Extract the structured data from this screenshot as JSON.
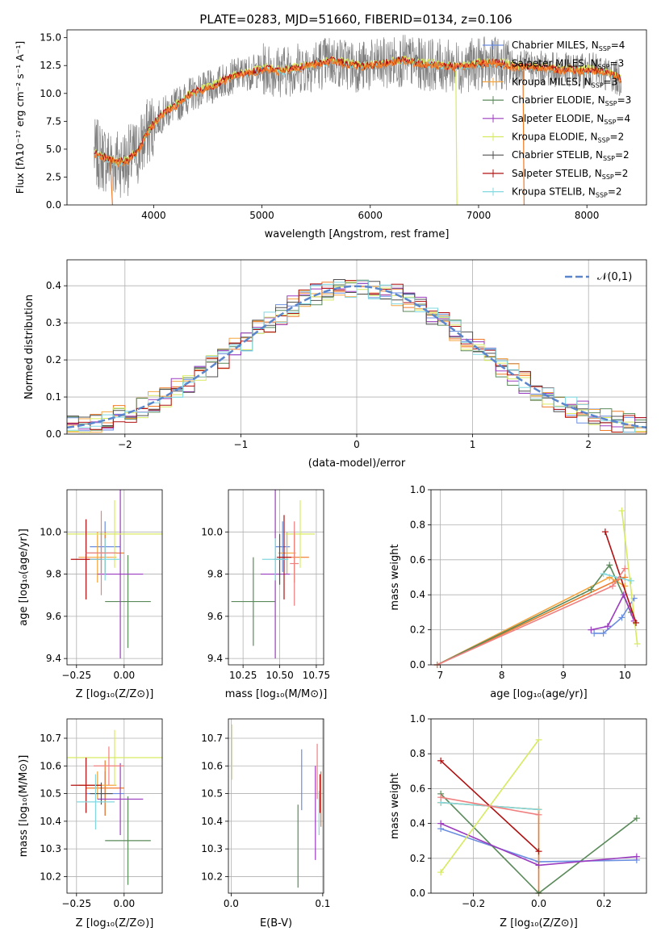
{
  "colors": {
    "cm": "#6a8ee0",
    "sm": "#f07a28",
    "km": "#f5a540",
    "ce": "#5a8a5a",
    "se": "#9b3bbf",
    "ke": "#d8ea60",
    "cs": "#505050",
    "ss": "#b01010",
    "ks": "#80d8e0",
    "grey": "#808080",
    "normal": "#5b86cc",
    "pinkish": "#f08080"
  },
  "chart_data": [
    {
      "id": "spectrum",
      "type": "line",
      "title": "PLATE=0283, MJD=51660, FIBERID=0134, z=0.106",
      "xlabel": "wavelength [Angstrom, rest frame]",
      "ylabel": "Flux [fλ10⁻¹⁷ erg cm⁻² s⁻¹ A⁻¹]",
      "xlim": [
        3200,
        8550
      ],
      "ylim": [
        0,
        15.7
      ],
      "xticks": [
        4000,
        5000,
        6000,
        7000,
        8000
      ],
      "yticks": [
        0.0,
        2.5,
        5.0,
        7.5,
        10.0,
        12.5,
        15.0
      ],
      "continuum": [
        [
          3450,
          4.6
        ],
        [
          3550,
          4.2
        ],
        [
          3650,
          3.8
        ],
        [
          3750,
          3.9
        ],
        [
          3850,
          4.7
        ],
        [
          3950,
          6.6
        ],
        [
          4050,
          7.8
        ],
        [
          4150,
          8.6
        ],
        [
          4250,
          9.2
        ],
        [
          4350,
          10.0
        ],
        [
          4450,
          10.3
        ],
        [
          4550,
          10.6
        ],
        [
          4650,
          11.2
        ],
        [
          4750,
          11.6
        ],
        [
          4850,
          11.8
        ],
        [
          4950,
          12.0
        ],
        [
          5050,
          12.2
        ],
        [
          5150,
          12.0
        ],
        [
          5250,
          12.1
        ],
        [
          5350,
          12.3
        ],
        [
          5450,
          12.5
        ],
        [
          5550,
          12.7
        ],
        [
          5650,
          12.9
        ],
        [
          5750,
          12.7
        ],
        [
          5850,
          12.5
        ],
        [
          5950,
          12.4
        ],
        [
          6050,
          12.5
        ],
        [
          6150,
          12.7
        ],
        [
          6250,
          12.9
        ],
        [
          6350,
          12.9
        ],
        [
          6450,
          12.6
        ],
        [
          6550,
          12.6
        ],
        [
          6650,
          12.5
        ],
        [
          6750,
          12.4
        ],
        [
          6850,
          12.4
        ],
        [
          6950,
          12.6
        ],
        [
          7050,
          12.7
        ],
        [
          7150,
          12.7
        ],
        [
          7250,
          12.6
        ],
        [
          7350,
          12.3
        ],
        [
          7450,
          12.4
        ],
        [
          7550,
          12.3
        ],
        [
          7650,
          12.2
        ],
        [
          7750,
          12.1
        ],
        [
          7850,
          12.1
        ],
        [
          7950,
          12.0
        ],
        [
          8050,
          12.1
        ],
        [
          8150,
          11.9
        ],
        [
          8250,
          11.6
        ],
        [
          8320,
          11.2
        ]
      ],
      "legend": [
        {
          "text": "Chabrier MILES, N",
          "sub": "SSP",
          "n": "=4",
          "color_key": "cm"
        },
        {
          "text": "Salpeter MILES, N",
          "sub": "SSP",
          "n": "=3",
          "color_key": "sm"
        },
        {
          "text": "Kroupa MILES, N",
          "sub": "SSP",
          "n": "=3",
          "color_key": "km"
        },
        {
          "text": "Chabrier ELODIE, N",
          "sub": "SSP",
          "n": "=3",
          "color_key": "ce"
        },
        {
          "text": "Salpeter ELODIE, N",
          "sub": "SSP",
          "n": "=4",
          "color_key": "se"
        },
        {
          "text": "Kroupa ELODIE, N",
          "sub": "SSP",
          "n": "=2",
          "color_key": "ke"
        },
        {
          "text": "Chabrier STELIB, N",
          "sub": "SSP",
          "n": "=2",
          "color_key": "cs"
        },
        {
          "text": "Salpeter STELIB, N",
          "sub": "SSP",
          "n": "=2",
          "color_key": "ss"
        },
        {
          "text": "Kroupa STELIB, N",
          "sub": "SSP",
          "n": "=2",
          "color_key": "ks"
        }
      ],
      "legend_placement": "right"
    },
    {
      "id": "hist",
      "type": "bar",
      "xlabel": "(data-model)/error",
      "ylabel": "Normed distribution",
      "xlim": [
        -2.5,
        2.5
      ],
      "ylim": [
        0,
        0.47
      ],
      "xticks": [
        -2,
        -1,
        0,
        1,
        2
      ],
      "yticks": [
        0.0,
        0.1,
        0.2,
        0.3,
        0.4
      ],
      "bin_edges": [
        -2.5,
        -2.4,
        -2.3,
        -2.2,
        -2.1,
        -2.0,
        -1.9,
        -1.8,
        -1.7,
        -1.6,
        -1.5,
        -1.4,
        -1.3,
        -1.2,
        -1.1,
        -1.0,
        -0.9,
        -0.8,
        -0.7,
        -0.6,
        -0.5,
        -0.4,
        -0.3,
        -0.2,
        -0.1,
        0.0,
        0.1,
        0.2,
        0.3,
        0.4,
        0.5,
        0.6,
        0.7,
        0.8,
        0.9,
        1.0,
        1.1,
        1.2,
        1.3,
        1.4,
        1.5,
        1.6,
        1.7,
        1.8,
        1.9,
        2.0,
        2.1,
        2.2,
        2.3,
        2.4,
        2.5
      ],
      "normal_legend": "𝒩(0,1)",
      "legend_placement": "upper right"
    },
    {
      "id": "age_vs_Z",
      "type": "scatter",
      "xlabel": "Z [log₁₀(Z/Z⊙)]",
      "ylabel": "age  [log₁₀(age/yr)]",
      "xlim": [
        -0.3,
        0.2
      ],
      "ylim": [
        9.37,
        10.2
      ],
      "xticks": [
        -0.25,
        0.0
      ],
      "xtick_labels": [
        "−0.25",
        "0.00"
      ],
      "yticks": [
        9.4,
        9.6,
        9.8,
        10.0
      ],
      "points": [
        {
          "color_key": "cm",
          "x": -0.1,
          "xerr": 0.08,
          "y": 9.93,
          "yerr": 0.12
        },
        {
          "color_key": "sm",
          "x": -0.1,
          "xerr": 0.1,
          "y": 9.9,
          "yerr": 0.1
        },
        {
          "color_key": "km",
          "x": -0.14,
          "xerr": 0.1,
          "y": 9.88,
          "yerr": 0.12
        },
        {
          "color_key": "ce",
          "x": 0.02,
          "xerr": 0.12,
          "y": 9.67,
          "yerr": 0.22
        },
        {
          "color_key": "se",
          "x": -0.02,
          "xerr": 0.12,
          "y": 9.8,
          "yerr": 0.4
        },
        {
          "color_key": "ke",
          "x": -0.05,
          "xerr": 0.25,
          "y": 9.99,
          "yerr": 0.16
        },
        {
          "color_key": "cs",
          "x": -0.12,
          "xerr": 0.08,
          "y": 9.9,
          "yerr": 0.1
        },
        {
          "color_key": "ss",
          "x": -0.2,
          "xerr": 0.08,
          "y": 9.87,
          "yerr": 0.19
        },
        {
          "color_key": "ks",
          "x": -0.1,
          "xerr": 0.08,
          "y": 9.87,
          "yerr": 0.1
        },
        {
          "color_key": "pinkish",
          "x": -0.12,
          "xerr": 0.08,
          "y": 9.9,
          "yerr": 0.2
        }
      ]
    },
    {
      "id": "age_vs_mass",
      "type": "scatter",
      "xlabel": "mass [log₁₀(M/M⊙)]",
      "ylabel": "",
      "xlim": [
        10.15,
        10.8
      ],
      "ylim": [
        9.37,
        10.2
      ],
      "xticks": [
        10.25,
        10.5,
        10.75
      ],
      "xtick_labels": [
        "10.25",
        "10.50",
        "10.75"
      ],
      "yticks": [
        9.4,
        9.6,
        9.8,
        10.0
      ],
      "points": [
        {
          "color_key": "cm",
          "x": 10.52,
          "xerr": 0.05,
          "y": 9.93,
          "yerr": 0.12
        },
        {
          "color_key": "sm",
          "x": 10.6,
          "xerr": 0.1,
          "y": 9.88,
          "yerr": 0.12
        },
        {
          "color_key": "km",
          "x": 10.55,
          "xerr": 0.06,
          "y": 9.9,
          "yerr": 0.1
        },
        {
          "color_key": "ce",
          "x": 10.32,
          "xerr": 0.15,
          "y": 9.67,
          "yerr": 0.21
        },
        {
          "color_key": "se",
          "x": 10.47,
          "xerr": 0.1,
          "y": 9.8,
          "yerr": 0.4
        },
        {
          "color_key": "ke",
          "x": 10.64,
          "xerr": 0.1,
          "y": 9.99,
          "yerr": 0.16
        },
        {
          "color_key": "cs",
          "x": 10.5,
          "xerr": 0.04,
          "y": 9.87,
          "yerr": 0.12
        },
        {
          "color_key": "ss",
          "x": 10.53,
          "xerr": 0.05,
          "y": 9.88,
          "yerr": 0.2
        },
        {
          "color_key": "ks",
          "x": 10.47,
          "xerr": 0.09,
          "y": 9.87,
          "yerr": 0.1
        },
        {
          "color_key": "pinkish",
          "x": 10.6,
          "xerr": 0.03,
          "y": 9.85,
          "yerr": 0.2
        }
      ]
    },
    {
      "id": "mw_vs_age",
      "type": "line",
      "xlabel": "age  [log₁₀(age/yr)]",
      "ylabel": "mass weight",
      "xlim": [
        6.85,
        10.35
      ],
      "ylim": [
        0,
        1
      ],
      "xticks": [
        7,
        8,
        9,
        10
      ],
      "yticks": [
        0.0,
        0.2,
        0.4,
        0.6,
        0.8,
        1.0
      ],
      "series": [
        {
          "color_key": "cm",
          "x": [
            9.5,
            9.65,
            9.95,
            10.15
          ],
          "y": [
            0.18,
            0.18,
            0.27,
            0.38
          ]
        },
        {
          "color_key": "sm",
          "x": [
            6.95,
            9.85,
            10.0
          ],
          "y": [
            0.0,
            0.48,
            0.5
          ]
        },
        {
          "color_key": "km",
          "x": [
            6.95,
            9.75,
            10.0
          ],
          "y": [
            0.0,
            0.5,
            0.45
          ]
        },
        {
          "color_key": "ce",
          "x": [
            6.95,
            9.45,
            9.75,
            10.1
          ],
          "y": [
            0.0,
            0.43,
            0.57,
            0.3
          ]
        },
        {
          "color_key": "se",
          "x": [
            9.45,
            9.72,
            9.98,
            10.15
          ],
          "y": [
            0.2,
            0.22,
            0.4,
            0.25
          ]
        },
        {
          "color_key": "ke",
          "x": [
            9.95,
            10.2
          ],
          "y": [
            0.88,
            0.12
          ]
        },
        {
          "color_key": "ss",
          "x": [
            9.68,
            10.18
          ],
          "y": [
            0.76,
            0.24
          ]
        },
        {
          "color_key": "ks",
          "x": [
            9.65,
            10.1
          ],
          "y": [
            0.52,
            0.48
          ]
        },
        {
          "color_key": "pinkish",
          "x": [
            6.95,
            9.8,
            10.0
          ],
          "y": [
            0.0,
            0.45,
            0.55
          ]
        }
      ]
    },
    {
      "id": "mass_vs_Z",
      "type": "scatter",
      "xlabel": "Z [log₁₀(Z/Z⊙)]",
      "ylabel": "mass [log₁₀(M/M⊙)]",
      "xlim": [
        -0.3,
        0.2
      ],
      "ylim": [
        10.14,
        10.77
      ],
      "xticks": [
        -0.25,
        0.0
      ],
      "xtick_labels": [
        "−0.25",
        "0.00"
      ],
      "yticks": [
        10.2,
        10.3,
        10.4,
        10.5,
        10.6,
        10.7
      ],
      "points": [
        {
          "color_key": "cm",
          "x": -0.1,
          "xerr": 0.1,
          "y": 10.5,
          "yerr": 0.08
        },
        {
          "color_key": "sm",
          "x": -0.1,
          "xerr": 0.1,
          "y": 10.52,
          "yerr": 0.1
        },
        {
          "color_key": "km",
          "x": -0.14,
          "xerr": 0.1,
          "y": 10.53,
          "yerr": 0.05
        },
        {
          "color_key": "ce",
          "x": 0.02,
          "xerr": 0.12,
          "y": 10.33,
          "yerr": 0.16
        },
        {
          "color_key": "se",
          "x": -0.02,
          "xerr": 0.12,
          "y": 10.48,
          "yerr": 0.13
        },
        {
          "color_key": "ke",
          "x": -0.05,
          "xerr": 0.25,
          "y": 10.63,
          "yerr": 0.1
        },
        {
          "color_key": "cs",
          "x": -0.12,
          "xerr": 0.06,
          "y": 10.5,
          "yerr": 0.04
        },
        {
          "color_key": "ss",
          "x": -0.2,
          "xerr": 0.08,
          "y": 10.53,
          "yerr": 0.1
        },
        {
          "color_key": "ks",
          "x": -0.15,
          "xerr": 0.1,
          "y": 10.47,
          "yerr": 0.1
        },
        {
          "color_key": "pinkish",
          "x": -0.08,
          "xerr": 0.08,
          "y": 10.6,
          "yerr": 0.07
        }
      ]
    },
    {
      "id": "mass_vs_ebv",
      "type": "scatter",
      "xlabel": "E(B-V)",
      "ylabel": "",
      "xlim": [
        -0.003,
        0.101
      ],
      "ylim": [
        10.14,
        10.77
      ],
      "xticks": [
        0.0,
        0.1
      ],
      "xtick_labels": [
        "0.0",
        "0.1"
      ],
      "yticks": [
        10.2,
        10.3,
        10.4,
        10.5,
        10.6,
        10.7
      ],
      "points": [
        {
          "color_key": "ke",
          "x": 0.001,
          "xerr": 0,
          "y": 10.65,
          "yerr": 0.1
        },
        {
          "color_key": "ce",
          "x": 0.073,
          "xerr": 0,
          "y": 10.31,
          "yerr": 0.15
        },
        {
          "color_key": "cm",
          "x": 0.077,
          "xerr": 0,
          "y": 10.55,
          "yerr": 0.11
        },
        {
          "color_key": "se",
          "x": 0.092,
          "xerr": 0,
          "y": 10.43,
          "yerr": 0.17
        },
        {
          "color_key": "pinkish",
          "x": 0.094,
          "xerr": 0,
          "y": 10.58,
          "yerr": 0.1
        },
        {
          "color_key": "sm",
          "x": 0.098,
          "xerr": 0,
          "y": 10.48,
          "yerr": 0.1
        },
        {
          "color_key": "ss",
          "x": 0.097,
          "xerr": 0,
          "y": 10.5,
          "yerr": 0.07
        },
        {
          "color_key": "ks",
          "x": 0.096,
          "xerr": 0,
          "y": 10.43,
          "yerr": 0.08
        }
      ]
    },
    {
      "id": "mw_vs_Z",
      "type": "line",
      "xlabel": "Z [log₁₀(Z/Z⊙)]",
      "ylabel": "mass weight",
      "xlim": [
        -0.33,
        0.33
      ],
      "ylim": [
        0,
        1
      ],
      "xticks": [
        -0.2,
        0.0,
        0.2
      ],
      "xtick_labels": [
        "−0.2",
        "0.0",
        "0.2"
      ],
      "yticks": [
        0.0,
        0.2,
        0.4,
        0.6,
        0.8,
        1.0
      ],
      "series": [
        {
          "color_key": "cm",
          "x": [
            -0.3,
            0.0,
            0.3
          ],
          "y": [
            0.37,
            0.18,
            0.19
          ]
        },
        {
          "color_key": "sm",
          "x": [
            -0.3,
            0.0,
            0.0
          ],
          "y": [
            0.52,
            0.48,
            0.0
          ]
        },
        {
          "color_key": "km",
          "x": [
            -0.3,
            0.0
          ],
          "y": [
            0.52,
            0.48
          ]
        },
        {
          "color_key": "ce",
          "x": [
            -0.3,
            0.0,
            0.3
          ],
          "y": [
            0.57,
            0.0,
            0.43
          ]
        },
        {
          "color_key": "se",
          "x": [
            -0.3,
            0.0,
            0.3
          ],
          "y": [
            0.4,
            0.16,
            0.21
          ]
        },
        {
          "color_key": "ke",
          "x": [
            -0.3,
            0.0
          ],
          "y": [
            0.12,
            0.88
          ]
        },
        {
          "color_key": "ss",
          "x": [
            -0.3,
            0.0
          ],
          "y": [
            0.76,
            0.24
          ]
        },
        {
          "color_key": "ks",
          "x": [
            -0.3,
            0.0
          ],
          "y": [
            0.52,
            0.48
          ]
        },
        {
          "color_key": "pinkish",
          "x": [
            -0.3,
            0.0
          ],
          "y": [
            0.55,
            0.45
          ]
        }
      ]
    }
  ]
}
